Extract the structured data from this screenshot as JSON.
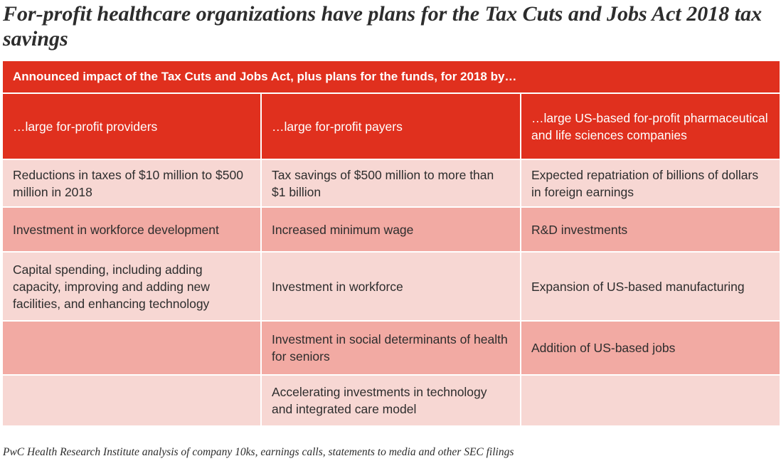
{
  "title": "For-profit healthcare organizations have plans for the Tax Cuts and Jobs Act 2018 tax savings",
  "table": {
    "banner": "Announced impact of the Tax Cuts and Jobs Act, plus plans for the funds, for 2018 by…",
    "columns": [
      "…large for-profit providers",
      "…large for-profit payers",
      "…large US-based for-profit pharmaceutical and life sciences companies"
    ],
    "rows": [
      [
        "Reductions in taxes of $10 million to $500 million in 2018",
        "Tax savings of $500 million to more than $1 billion",
        "Expected repatriation of billions of dollars in foreign earnings"
      ],
      [
        "Investment in workforce development",
        "Increased minimum wage",
        "R&D investments"
      ],
      [
        "Capital spending, including adding capacity, improving and adding new facilities, and enhancing technology",
        "Investment in workforce",
        "Expansion of US-based manufacturing"
      ],
      [
        "",
        "Investment in social determinants of health for seniors",
        "Addition of US-based jobs"
      ],
      [
        "",
        "Accelerating investments in technology and integrated care model",
        ""
      ]
    ]
  },
  "source": "PwC Health Research Institute analysis of company 10ks, earnings calls, statements to media and other SEC filings",
  "colors": {
    "header_red": "#e0301e",
    "row_light": "#f7d7d3",
    "row_dark": "#f2aaa3",
    "text": "#2d2d2d"
  }
}
